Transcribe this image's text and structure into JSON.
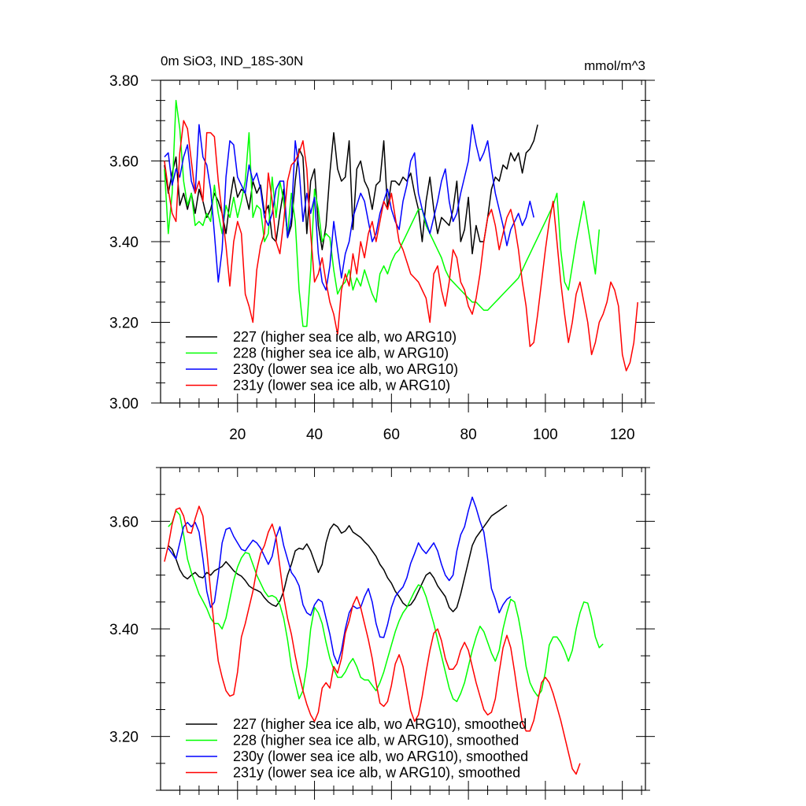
{
  "chart_data": [
    {
      "type": "line",
      "title": "0m SiO3, IND_18S-30N",
      "units": "mmol/m^3",
      "xlim": [
        0,
        126
      ],
      "ylim": [
        3.0,
        3.8
      ],
      "x_ticks": [
        20,
        40,
        60,
        80,
        100,
        120
      ],
      "y_ticks": [
        3.0,
        3.2,
        3.4,
        3.6,
        3.8
      ],
      "x_tick_labels": [
        "20",
        "40",
        "60",
        "80",
        "100",
        "120"
      ],
      "y_tick_labels": [
        "3.00",
        "3.20",
        "3.40",
        "3.60",
        "3.80"
      ],
      "legend_position": "bottom-left",
      "series": [
        {
          "name": "227 (higher sea ice alb, wo ARG10)",
          "color": "#000000",
          "x_start": 1,
          "values": [
            3.59,
            3.52,
            3.57,
            3.61,
            3.49,
            3.52,
            3.48,
            3.52,
            3.47,
            3.53,
            3.5,
            3.46,
            3.48,
            3.52,
            3.5,
            3.47,
            3.42,
            3.5,
            3.56,
            3.51,
            3.53,
            3.52,
            3.48,
            3.55,
            3.52,
            3.54,
            3.47,
            3.49,
            3.41,
            3.4,
            3.47,
            3.53,
            3.41,
            3.44,
            3.55,
            3.63,
            3.61,
            3.42,
            3.55,
            3.58,
            3.44,
            3.38,
            3.44,
            3.57,
            3.67,
            3.58,
            3.55,
            3.56,
            3.65,
            3.43,
            3.58,
            3.6,
            3.55,
            3.53,
            3.48,
            3.54,
            3.55,
            3.65,
            3.48,
            3.55,
            3.55,
            3.54,
            3.56,
            3.55,
            3.57,
            3.52,
            3.48,
            3.4,
            3.5,
            3.56,
            3.48,
            3.42,
            3.46,
            3.45,
            3.44,
            3.48,
            3.55,
            3.4,
            3.43,
            3.51,
            3.37,
            3.44,
            3.4,
            3.4,
            3.46,
            3.53,
            3.56,
            3.55,
            3.59,
            3.58,
            3.62,
            3.6,
            3.62,
            3.57,
            3.62,
            3.63,
            3.65,
            3.69
          ]
        },
        {
          "name": "228 (higher sea ice alb, w ARG10)",
          "color": "#00ff00",
          "x_start": 1,
          "values": [
            3.58,
            3.42,
            3.52,
            3.75,
            3.68,
            3.55,
            3.49,
            3.52,
            3.44,
            3.45,
            3.44,
            3.47,
            3.45,
            3.54,
            3.47,
            3.42,
            3.49,
            3.46,
            3.51,
            3.46,
            3.5,
            3.55,
            3.67,
            3.46,
            3.49,
            3.48,
            3.4,
            3.42,
            3.56,
            3.46,
            3.55,
            3.5,
            3.42,
            3.52,
            3.45,
            3.28,
            3.19,
            3.19,
            3.33,
            3.53,
            3.48,
            3.4,
            3.42,
            3.41,
            3.33,
            3.27,
            3.29,
            3.3,
            3.33,
            3.28,
            3.31,
            3.29,
            3.33,
            3.3,
            3.27,
            3.25,
            3.32,
            3.34,
            3.32,
            3.35,
            3.37,
            3.38,
            3.4,
            3.42,
            3.44,
            3.46,
            3.48,
            3.48,
            3.44,
            3.42,
            3.4,
            3.38,
            3.36,
            3.33,
            3.31,
            3.3,
            3.29,
            3.28,
            3.27,
            3.26,
            3.25,
            3.25,
            3.24,
            3.23,
            3.23,
            3.24,
            3.25,
            3.26,
            3.27,
            3.28,
            3.29,
            3.3,
            3.31,
            3.33,
            3.35,
            3.37,
            3.39,
            3.41,
            3.43,
            3.45,
            3.47,
            3.49,
            3.52,
            3.38,
            3.3,
            3.28,
            3.34,
            3.4,
            3.45,
            3.5,
            3.44,
            3.38,
            3.32,
            3.43
          ]
        },
        {
          "name": "230y (lower sea ice alb, wo ARG10)",
          "color": "#0000ff",
          "x_start": 1,
          "values": [
            3.61,
            3.62,
            3.54,
            3.58,
            3.56,
            3.61,
            3.64,
            3.55,
            3.52,
            3.69,
            3.61,
            3.59,
            3.53,
            3.42,
            3.3,
            3.38,
            3.56,
            3.65,
            3.64,
            3.56,
            3.54,
            3.52,
            3.59,
            3.55,
            3.57,
            3.53,
            3.46,
            3.44,
            3.47,
            3.53,
            3.55,
            3.55,
            3.41,
            3.46,
            3.65,
            3.58,
            3.45,
            3.52,
            3.47,
            3.51,
            3.37,
            3.3,
            3.28,
            3.34,
            3.45,
            3.38,
            3.31,
            3.37,
            3.4,
            3.46,
            3.49,
            3.52,
            3.5,
            3.45,
            3.4,
            3.42,
            3.47,
            3.5,
            3.53,
            3.48,
            3.45,
            3.43,
            3.5,
            3.54,
            3.6,
            3.62,
            3.52,
            3.48,
            3.45,
            3.42,
            3.46,
            3.5,
            3.55,
            3.58,
            3.5,
            3.45,
            3.47,
            3.52,
            3.56,
            3.6,
            3.69,
            3.64,
            3.6,
            3.62,
            3.65,
            3.58,
            3.52,
            3.48,
            3.44,
            3.39,
            3.43,
            3.45,
            3.47,
            3.44,
            3.46,
            3.5,
            3.46
          ]
        },
        {
          "name": "231y (lower sea ice alb, w ARG10)",
          "color": "#ff0000",
          "x_start": 1,
          "values": [
            3.6,
            3.53,
            3.47,
            3.45,
            3.62,
            3.7,
            3.68,
            3.6,
            3.52,
            3.55,
            3.5,
            3.67,
            3.67,
            3.66,
            3.55,
            3.47,
            3.39,
            3.29,
            3.4,
            3.45,
            3.42,
            3.27,
            3.24,
            3.2,
            3.33,
            3.39,
            3.42,
            3.57,
            3.5,
            3.4,
            3.37,
            3.45,
            3.55,
            3.59,
            3.6,
            3.62,
            3.65,
            3.58,
            3.42,
            3.3,
            3.32,
            3.36,
            3.3,
            3.25,
            3.22,
            3.17,
            3.28,
            3.32,
            3.29,
            3.37,
            3.32,
            3.4,
            3.36,
            3.42,
            3.45,
            3.4,
            3.45,
            3.5,
            3.48,
            3.52,
            3.46,
            3.4,
            3.38,
            3.35,
            3.32,
            3.31,
            3.3,
            3.28,
            3.26,
            3.2,
            3.32,
            3.34,
            3.28,
            3.24,
            3.3,
            3.38,
            3.36,
            3.3,
            3.28,
            3.24,
            3.22,
            3.26,
            3.32,
            3.4,
            3.46,
            3.48,
            3.44,
            3.38,
            3.42,
            3.46,
            3.48,
            3.44,
            3.38,
            3.3,
            3.24,
            3.14,
            3.15,
            3.22,
            3.3,
            3.38,
            3.45,
            3.5,
            3.4,
            3.3,
            3.22,
            3.15,
            3.2,
            3.27,
            3.3,
            3.25,
            3.2,
            3.12,
            3.15,
            3.2,
            3.22,
            3.25,
            3.3,
            3.28,
            3.24,
            3.12,
            3.08,
            3.1,
            3.15,
            3.25
          ]
        }
      ]
    },
    {
      "type": "line",
      "title": "",
      "xlim": [
        0,
        126
      ],
      "ylim": [
        3.1,
        3.7
      ],
      "x_ticks": [
        20,
        40,
        60,
        80,
        100,
        120
      ],
      "y_ticks": [
        3.2,
        3.4,
        3.6
      ],
      "y_tick_labels": [
        "3.20",
        "3.40",
        "3.60"
      ],
      "legend_position": "bottom-left",
      "series": [
        {
          "name": "227 (higher sea ice alb, wo ARG10), smoothed",
          "color": "#000000",
          "x_start": 2,
          "values": [
            3.555,
            3.548,
            3.53,
            3.51,
            3.498,
            3.493,
            3.5,
            3.505,
            3.497,
            3.495,
            3.505,
            3.5,
            3.508,
            3.512,
            3.516,
            3.525,
            3.517,
            3.508,
            3.502,
            3.498,
            3.49,
            3.48,
            3.475,
            3.472,
            3.468,
            3.458,
            3.45,
            3.445,
            3.442,
            3.452,
            3.47,
            3.5,
            3.52,
            3.545,
            3.55,
            3.548,
            3.558,
            3.545,
            3.525,
            3.505,
            3.52,
            3.56,
            3.585,
            3.595,
            3.59,
            3.578,
            3.582,
            3.592,
            3.58,
            3.575,
            3.57,
            3.562,
            3.555,
            3.545,
            3.535,
            3.52,
            3.51,
            3.495,
            3.485,
            3.47,
            3.46,
            3.448,
            3.442,
            3.445,
            3.455,
            3.47,
            3.485,
            3.5,
            3.505,
            3.495,
            3.48,
            3.47,
            3.46,
            3.44,
            3.432,
            3.44,
            3.465,
            3.495,
            3.525,
            3.555,
            3.57,
            3.58,
            3.59,
            3.6,
            3.61,
            3.615,
            3.62,
            3.625,
            3.63
          ]
        },
        {
          "name": "228 (higher sea ice alb, w ARG10), smoothed",
          "color": "#00ff00",
          "x_start": 2,
          "values": [
            3.59,
            3.598,
            3.62,
            3.612,
            3.575,
            3.53,
            3.505,
            3.485,
            3.465,
            3.452,
            3.438,
            3.42,
            3.41,
            3.41,
            3.4,
            3.42,
            3.455,
            3.49,
            3.515,
            3.532,
            3.542,
            3.54,
            3.52,
            3.5,
            3.485,
            3.47,
            3.46,
            3.462,
            3.458,
            3.445,
            3.42,
            3.38,
            3.33,
            3.3,
            3.27,
            3.285,
            3.33,
            3.4,
            3.44,
            3.43,
            3.41,
            3.375,
            3.345,
            3.325,
            3.31,
            3.31,
            3.32,
            3.335,
            3.345,
            3.33,
            3.31,
            3.305,
            3.305,
            3.295,
            3.285,
            3.3,
            3.32,
            3.345,
            3.37,
            3.395,
            3.415,
            3.43,
            3.44,
            3.455,
            3.47,
            3.482,
            3.478,
            3.46,
            3.435,
            3.41,
            3.38,
            3.35,
            3.32,
            3.29,
            3.27,
            3.265,
            3.28,
            3.3,
            3.33,
            3.36,
            3.385,
            3.405,
            3.395,
            3.375,
            3.355,
            3.34,
            3.36,
            3.4,
            3.43,
            3.455,
            3.45,
            3.42,
            3.38,
            3.33,
            3.3,
            3.285,
            3.275,
            3.285,
            3.32,
            3.37,
            3.385,
            3.385,
            3.375,
            3.36,
            3.34,
            3.36,
            3.4,
            3.43,
            3.45,
            3.448,
            3.42,
            3.385,
            3.365,
            3.372
          ]
        },
        {
          "name": "230y (lower sea ice alb, wo ARG10), smoothed",
          "color": "#0000ff",
          "x_start": 2,
          "values": [
            3.55,
            3.54,
            3.53,
            3.56,
            3.59,
            3.598,
            3.59,
            3.598,
            3.58,
            3.53,
            3.47,
            3.44,
            3.45,
            3.5,
            3.56,
            3.585,
            3.588,
            3.572,
            3.56,
            3.548,
            3.545,
            3.555,
            3.565,
            3.56,
            3.55,
            3.535,
            3.52,
            3.535,
            3.57,
            3.59,
            3.555,
            3.53,
            3.505,
            3.495,
            3.48,
            3.445,
            3.43,
            3.425,
            3.445,
            3.455,
            3.45,
            3.42,
            3.39,
            3.352,
            3.335,
            3.36,
            3.4,
            3.43,
            3.443,
            3.438,
            3.44,
            3.46,
            3.475,
            3.45,
            3.41,
            3.385,
            3.384,
            3.408,
            3.44,
            3.46,
            3.47,
            3.478,
            3.495,
            3.522,
            3.54,
            3.56,
            3.548,
            3.54,
            3.55,
            3.56,
            3.545,
            3.52,
            3.5,
            3.49,
            3.5,
            3.545,
            3.575,
            3.59,
            3.62,
            3.645,
            3.625,
            3.6,
            3.58,
            3.53,
            3.475,
            3.455,
            3.43,
            3.445,
            3.455,
            3.46
          ]
        },
        {
          "name": "231y (lower sea ice alb, w ARG10), smoothed",
          "color": "#ff0000",
          "x_start": 1,
          "values": [
            3.525,
            3.555,
            3.595,
            3.622,
            3.625,
            3.61,
            3.58,
            3.578,
            3.605,
            3.628,
            3.61,
            3.545,
            3.47,
            3.4,
            3.34,
            3.31,
            3.285,
            3.275,
            3.278,
            3.32,
            3.385,
            3.41,
            3.44,
            3.47,
            3.51,
            3.54,
            3.555,
            3.58,
            3.595,
            3.57,
            3.515,
            3.46,
            3.42,
            3.39,
            3.35,
            3.315,
            3.285,
            3.26,
            3.24,
            3.228,
            3.245,
            3.29,
            3.3,
            3.29,
            3.33,
            3.318,
            3.345,
            3.392,
            3.415,
            3.445,
            3.46,
            3.44,
            3.41,
            3.38,
            3.345,
            3.3,
            3.262,
            3.256,
            3.265,
            3.295,
            3.335,
            3.352,
            3.33,
            3.29,
            3.248,
            3.228,
            3.24,
            3.275,
            3.32,
            3.36,
            3.392,
            3.4,
            3.378,
            3.345,
            3.325,
            3.325,
            3.335,
            3.36,
            3.375,
            3.36,
            3.33,
            3.3,
            3.275,
            3.25,
            3.24,
            3.245,
            3.27,
            3.32,
            3.365,
            3.388,
            3.365,
            3.32,
            3.27,
            3.225,
            3.21,
            3.21,
            3.23,
            3.265,
            3.3,
            3.31,
            3.3,
            3.28,
            3.255,
            3.23,
            3.2,
            3.17,
            3.14,
            3.13,
            3.15
          ]
        }
      ]
    }
  ]
}
